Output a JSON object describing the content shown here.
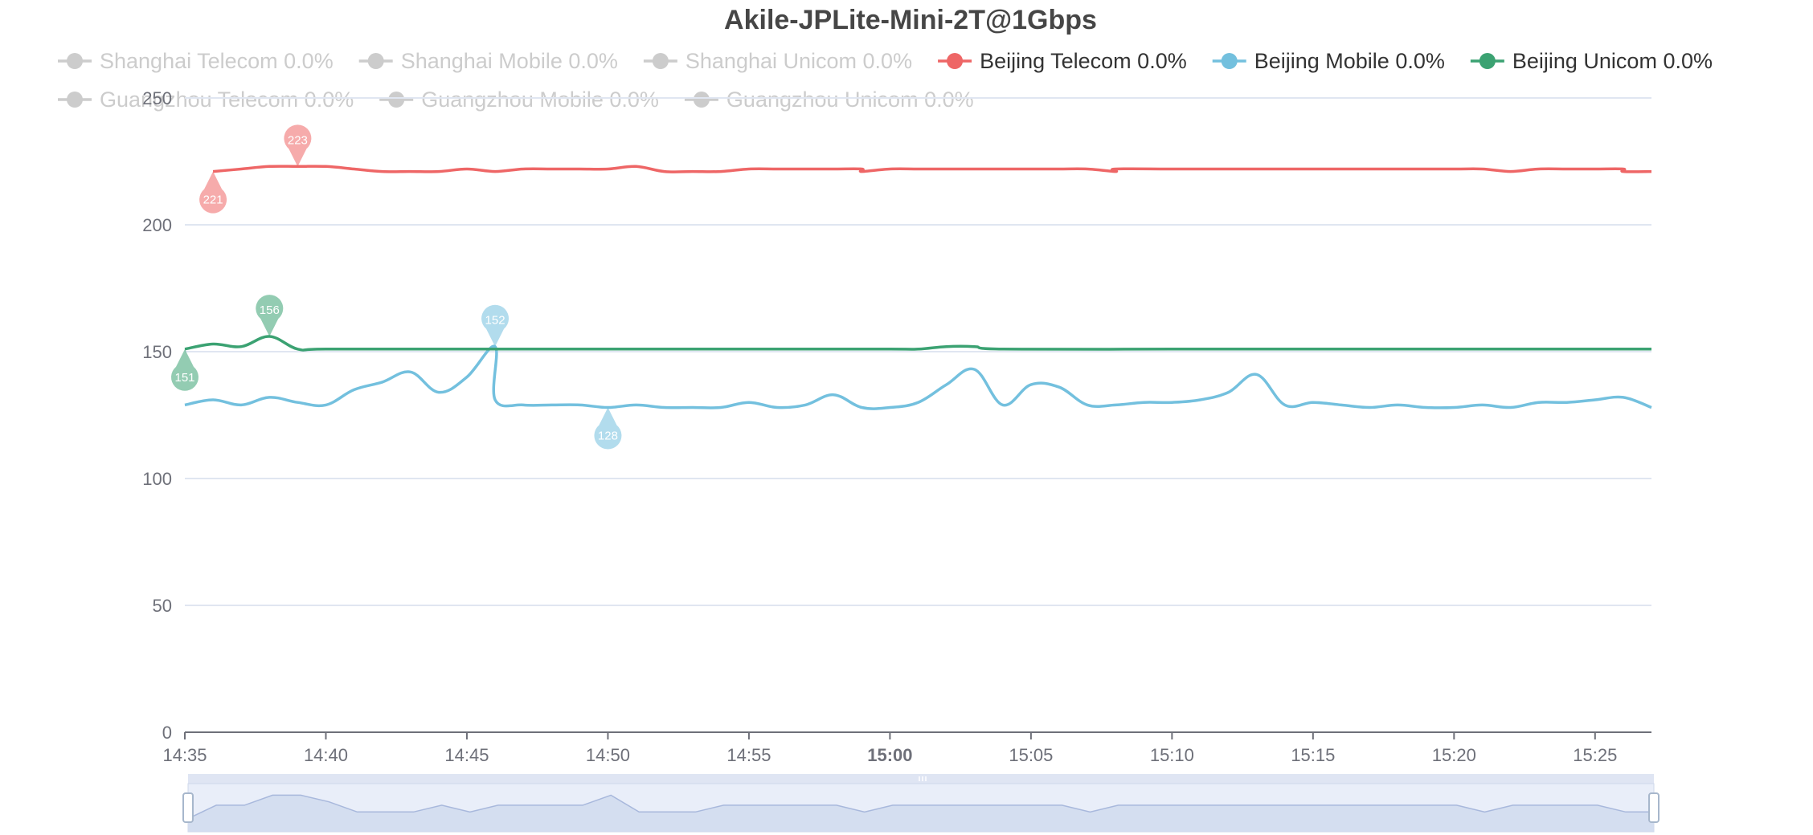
{
  "chart_data": {
    "type": "line",
    "title": "Akile-JPLite-Mini-2T@1Gbps",
    "ylim": [
      0,
      250
    ],
    "yticks": [
      0,
      50,
      100,
      150,
      200,
      250
    ],
    "xlim": [
      "14:35",
      "15:27"
    ],
    "xticks": [
      {
        "t": "14:35",
        "label": "14:35",
        "bold": false
      },
      {
        "t": "14:40",
        "label": "14:40",
        "bold": false
      },
      {
        "t": "14:45",
        "label": "14:45",
        "bold": false
      },
      {
        "t": "14:50",
        "label": "14:50",
        "bold": false
      },
      {
        "t": "14:55",
        "label": "14:55",
        "bold": false
      },
      {
        "t": "15:00",
        "label": "15:00",
        "bold": true
      },
      {
        "t": "15:05",
        "label": "15:05",
        "bold": false
      },
      {
        "t": "15:10",
        "label": "15:10",
        "bold": false
      },
      {
        "t": "15:15",
        "label": "15:15",
        "bold": false
      },
      {
        "t": "15:20",
        "label": "15:20",
        "bold": false
      },
      {
        "t": "15:25",
        "label": "15:25",
        "bold": false
      }
    ],
    "grid": true,
    "legend_placement": "top",
    "legend": [
      {
        "name": "Shanghai Telecom",
        "loss": "0.0%",
        "color": "#5470c6",
        "active": false
      },
      {
        "name": "Shanghai Mobile",
        "loss": "0.0%",
        "color": "#91cc75",
        "active": false
      },
      {
        "name": "Shanghai Unicom",
        "loss": "0.0%",
        "color": "#fac858",
        "active": false
      },
      {
        "name": "Beijing Telecom",
        "loss": "0.0%",
        "color": "#ee6666",
        "active": true
      },
      {
        "name": "Beijing Mobile",
        "loss": "0.0%",
        "color": "#73c0de",
        "active": true
      },
      {
        "name": "Beijing Unicom",
        "loss": "0.0%",
        "color": "#3ba272",
        "active": true
      },
      {
        "name": "Guangzhou Telecom",
        "loss": "0.0%",
        "color": "#fc8452",
        "active": false
      },
      {
        "name": "Guangzhou Mobile",
        "loss": "0.0%",
        "color": "#9a60b4",
        "active": false
      },
      {
        "name": "Guangzhou Unicom",
        "loss": "0.0%",
        "color": "#ea7ccc",
        "active": false
      }
    ],
    "series": [
      {
        "name": "Beijing Telecom",
        "color": "#ee6666",
        "points": [
          [
            "14:36",
            221
          ],
          [
            "14:37",
            222
          ],
          [
            "14:38",
            223
          ],
          [
            "14:39",
            223
          ],
          [
            "14:40",
            223
          ],
          [
            "14:41",
            222
          ],
          [
            "14:42",
            221
          ],
          [
            "14:43",
            221
          ],
          [
            "14:44",
            221
          ],
          [
            "14:45",
            222
          ],
          [
            "14:46",
            221
          ],
          [
            "14:47",
            222
          ],
          [
            "14:48",
            222
          ],
          [
            "14:49",
            222
          ],
          [
            "14:50",
            222
          ],
          [
            "14:51",
            223
          ],
          [
            "14:52",
            221
          ],
          [
            "14:53",
            221
          ],
          [
            "14:54",
            221
          ],
          [
            "14:55",
            222
          ],
          [
            "14:56",
            222
          ],
          [
            "14:57",
            222
          ],
          [
            "14:58",
            222
          ],
          [
            "14:59",
            222
          ],
          [
            "14:59",
            221
          ],
          [
            "15:00",
            222
          ],
          [
            "15:01",
            222
          ],
          [
            "15:02",
            222
          ],
          [
            "15:03",
            222
          ],
          [
            "15:04",
            222
          ],
          [
            "15:05",
            222
          ],
          [
            "15:06",
            222
          ],
          [
            "15:07",
            222
          ],
          [
            "15:08",
            221
          ],
          [
            "15:08",
            222
          ],
          [
            "15:10",
            222
          ],
          [
            "15:12",
            222
          ],
          [
            "15:14",
            222
          ],
          [
            "15:16",
            222
          ],
          [
            "15:18",
            222
          ],
          [
            "15:20",
            222
          ],
          [
            "15:21",
            222
          ],
          [
            "15:22",
            221
          ],
          [
            "15:23",
            222
          ],
          [
            "15:24",
            222
          ],
          [
            "15:25",
            222
          ],
          [
            "15:26",
            222
          ],
          [
            "15:26",
            221
          ],
          [
            "15:27",
            221
          ]
        ],
        "markers": [
          {
            "label": "223",
            "t": "14:39",
            "v": 223,
            "kind": "max"
          },
          {
            "label": "221",
            "t": "14:36",
            "v": 221,
            "kind": "min"
          }
        ]
      },
      {
        "name": "Beijing Mobile",
        "color": "#73c0de",
        "points": [
          [
            "14:35",
            129
          ],
          [
            "14:36",
            131
          ],
          [
            "14:37",
            129
          ],
          [
            "14:38",
            132
          ],
          [
            "14:39",
            130
          ],
          [
            "14:40",
            129
          ],
          [
            "14:41",
            135
          ],
          [
            "14:42",
            138
          ],
          [
            "14:43",
            142
          ],
          [
            "14:44",
            134
          ],
          [
            "14:45",
            140
          ],
          [
            "14:46",
            152
          ],
          [
            "14:46",
            131
          ],
          [
            "14:47",
            129
          ],
          [
            "14:48",
            129
          ],
          [
            "14:49",
            129
          ],
          [
            "14:50",
            128
          ],
          [
            "14:51",
            129
          ],
          [
            "14:52",
            128
          ],
          [
            "14:53",
            128
          ],
          [
            "14:54",
            128
          ],
          [
            "14:55",
            130
          ],
          [
            "14:56",
            128
          ],
          [
            "14:57",
            129
          ],
          [
            "14:58",
            133
          ],
          [
            "14:59",
            128
          ],
          [
            "15:00",
            128
          ],
          [
            "15:01",
            130
          ],
          [
            "15:02",
            137
          ],
          [
            "15:03",
            143
          ],
          [
            "15:04",
            129
          ],
          [
            "15:05",
            137
          ],
          [
            "15:06",
            136
          ],
          [
            "15:07",
            129
          ],
          [
            "15:08",
            129
          ],
          [
            "15:09",
            130
          ],
          [
            "15:10",
            130
          ],
          [
            "15:11",
            131
          ],
          [
            "15:12",
            134
          ],
          [
            "15:13",
            141
          ],
          [
            "15:14",
            129
          ],
          [
            "15:15",
            130
          ],
          [
            "15:16",
            129
          ],
          [
            "15:17",
            128
          ],
          [
            "15:18",
            129
          ],
          [
            "15:19",
            128
          ],
          [
            "15:20",
            128
          ],
          [
            "15:21",
            129
          ],
          [
            "15:22",
            128
          ],
          [
            "15:23",
            130
          ],
          [
            "15:24",
            130
          ],
          [
            "15:25",
            131
          ],
          [
            "15:26",
            132
          ],
          [
            "15:27",
            128
          ]
        ],
        "markers": [
          {
            "label": "152",
            "t": "14:46",
            "v": 152,
            "kind": "max"
          },
          {
            "label": "128",
            "t": "14:50",
            "v": 128,
            "kind": "min"
          }
        ]
      },
      {
        "name": "Beijing Unicom",
        "color": "#3ba272",
        "points": [
          [
            "14:35",
            151
          ],
          [
            "14:36",
            153
          ],
          [
            "14:37",
            152
          ],
          [
            "14:38",
            156
          ],
          [
            "14:39",
            151
          ],
          [
            "14:40",
            151
          ],
          [
            "14:45",
            151
          ],
          [
            "14:50",
            151
          ],
          [
            "14:55",
            151
          ],
          [
            "15:00",
            151
          ],
          [
            "15:01",
            151
          ],
          [
            "15:02",
            152
          ],
          [
            "15:03",
            152
          ],
          [
            "15:04",
            151
          ],
          [
            "15:10",
            151
          ],
          [
            "15:15",
            151
          ],
          [
            "15:20",
            151
          ],
          [
            "15:27",
            151
          ]
        ],
        "markers": [
          {
            "label": "156",
            "t": "14:38",
            "v": 156,
            "kind": "max"
          },
          {
            "label": "151",
            "t": "14:35",
            "v": 151,
            "kind": "min"
          }
        ]
      }
    ],
    "overview_values": [
      128,
      132,
      132,
      135,
      135,
      133,
      130,
      130,
      130,
      132,
      130,
      132,
      132,
      132,
      132,
      135,
      130,
      130,
      130,
      132,
      132,
      132,
      132,
      132,
      130,
      132,
      132,
      132,
      132,
      132,
      132,
      132,
      130,
      132,
      132,
      132,
      132,
      132,
      132,
      132,
      132,
      132,
      132,
      132,
      132,
      132,
      130,
      132,
      132,
      132,
      132,
      130,
      130
    ],
    "colors": {
      "axis": "#6E7079",
      "grid": "#E0E6F1",
      "inactive": "#cccccc",
      "title": "#464646",
      "zoom_fill": "#d2dbee",
      "zoom_handle": "#a7b7cc"
    }
  }
}
